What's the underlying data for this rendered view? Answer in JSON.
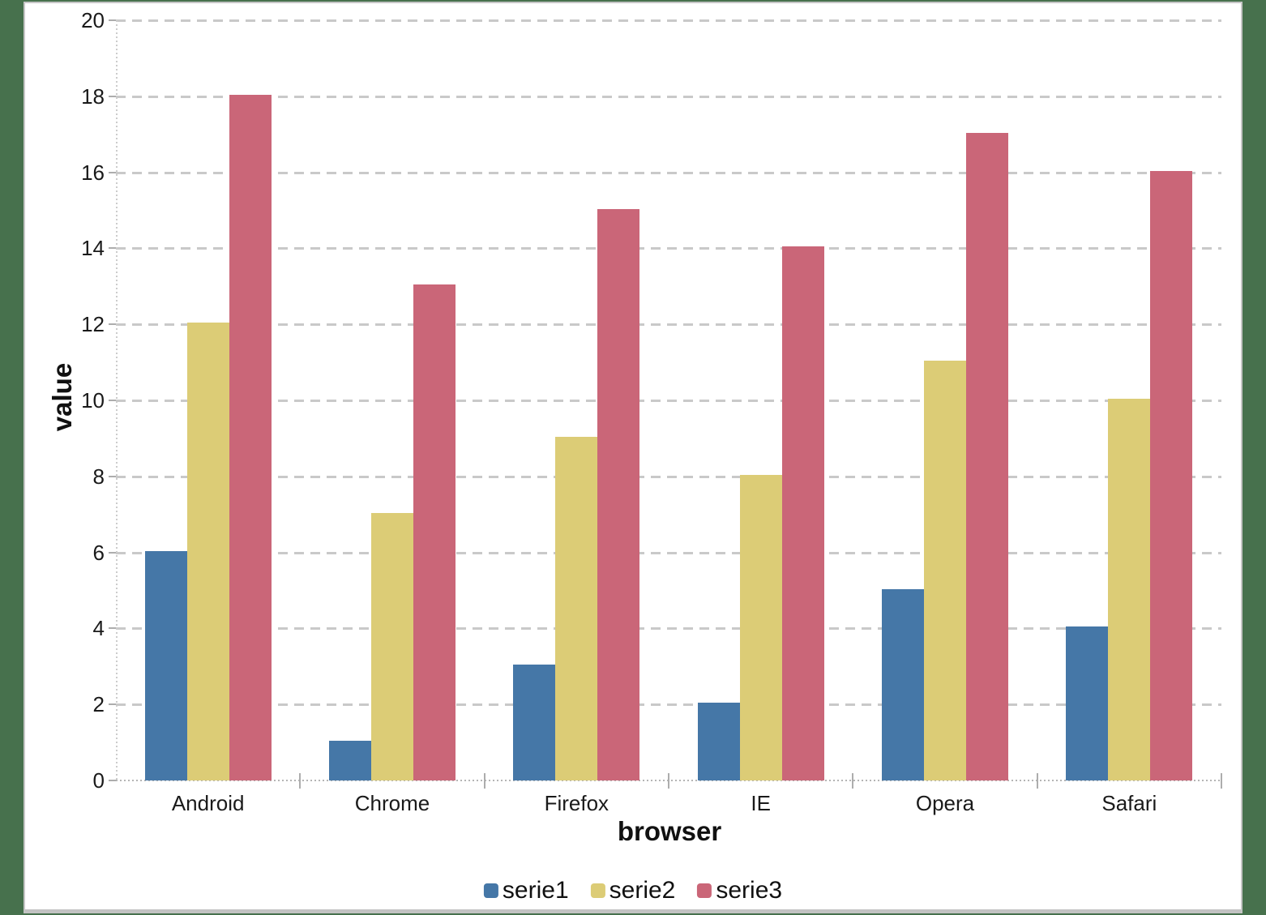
{
  "chart_data": {
    "type": "bar",
    "categories": [
      "Android",
      "Chrome",
      "Firefox",
      "IE",
      "Opera",
      "Safari"
    ],
    "series": [
      {
        "name": "serie1",
        "color": "#4577A7",
        "values": [
          6,
          1,
          3,
          2,
          5,
          4
        ]
      },
      {
        "name": "serie2",
        "color": "#DCCC76",
        "values": [
          12,
          7,
          9,
          8,
          11,
          10
        ]
      },
      {
        "name": "serie3",
        "color": "#CA6678",
        "values": [
          18,
          13,
          15,
          14,
          17,
          16
        ]
      }
    ],
    "title": "",
    "xlabel": "browser",
    "ylabel": "value",
    "ylim": [
      0,
      20
    ],
    "yticks": [
      0,
      2,
      4,
      6,
      8,
      10,
      12,
      14,
      16,
      18,
      20
    ],
    "grid": "dashed-horizontal",
    "legend_position": "bottom-center"
  },
  "colors": {
    "page_background": "#47714D",
    "panel_background": "#FFFFFF",
    "panel_border": "#C3C3C3",
    "gridline": "#C9C9C9",
    "axis_tick": "#ADADAD",
    "text": "#1A1A1A"
  }
}
